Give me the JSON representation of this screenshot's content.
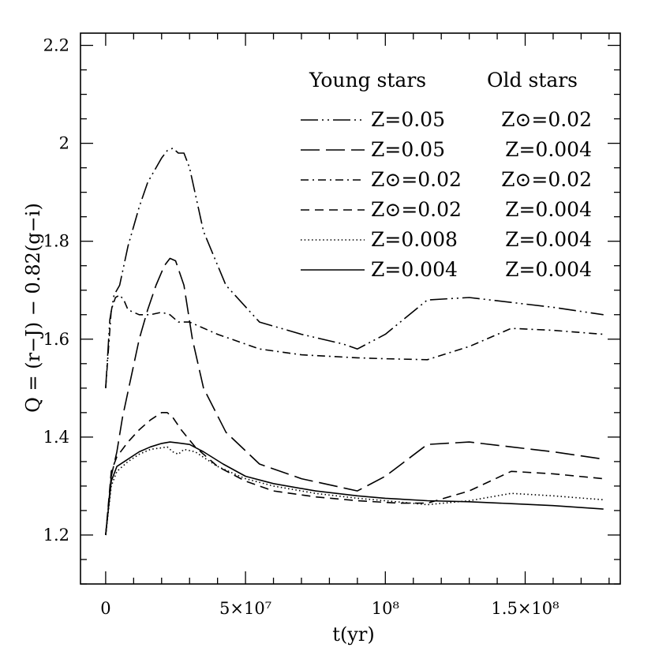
{
  "chart_data": {
    "type": "line",
    "title": "",
    "xlabel": "t(yr)",
    "ylabel": "Q = (r−J) − 0.82(g−i)",
    "xlim": [
      -9000000,
      184000000
    ],
    "ylim": [
      1.1,
      2.225
    ],
    "x_ticks": [
      {
        "value": 0,
        "label": "0"
      },
      {
        "value": 50000000,
        "label": "5×10⁷"
      },
      {
        "value": 100000000,
        "label": "10⁸"
      },
      {
        "value": 150000000,
        "label": "1.5×10⁸"
      }
    ],
    "y_ticks": [
      {
        "value": 1.2,
        "label": "1.2"
      },
      {
        "value": 1.4,
        "label": "1.4"
      },
      {
        "value": 1.6,
        "label": "1.6"
      },
      {
        "value": 1.8,
        "label": "1.8"
      },
      {
        "value": 2.0,
        "label": "2"
      },
      {
        "value": 2.2,
        "label": "2.2"
      }
    ],
    "legend": {
      "position": "top-right",
      "header_young": "Young stars",
      "header_old": "Old stars"
    },
    "series": [
      {
        "name": "Z=0.05 / Z⊙=0.02",
        "young": "Z=0.05",
        "old": "Z⊙=0.02",
        "dash": "long-dash-dot-dot",
        "x": [
          0,
          1500000,
          3000000,
          5000000,
          8000000,
          12000000,
          15000000,
          18000000,
          20000000,
          22000000,
          24000000,
          26000000,
          28000000,
          30000000,
          35000000,
          43000000,
          55000000,
          70000000,
          85000000,
          90000000,
          100000000,
          115000000,
          130000000,
          145000000,
          160000000,
          178000000
        ],
        "y": [
          1.5,
          1.64,
          1.69,
          1.71,
          1.79,
          1.87,
          1.92,
          1.95,
          1.97,
          1.985,
          1.99,
          1.98,
          1.98,
          1.95,
          1.82,
          1.71,
          1.635,
          1.61,
          1.59,
          1.58,
          1.61,
          1.68,
          1.685,
          1.675,
          1.665,
          1.65
        ]
      },
      {
        "name": "Z=0.05 / Z=0.004",
        "young": "Z=0.05",
        "old": "Z=0.004",
        "dash": "long-dash",
        "x": [
          0,
          2000000,
          4000000,
          6000000,
          9000000,
          12000000,
          15000000,
          18000000,
          21000000,
          23000000,
          25000000,
          28000000,
          31000000,
          35000000,
          43000000,
          55000000,
          70000000,
          90000000,
          100000000,
          115000000,
          130000000,
          145000000,
          160000000,
          178000000
        ],
        "y": [
          1.2,
          1.32,
          1.37,
          1.44,
          1.52,
          1.6,
          1.66,
          1.71,
          1.75,
          1.765,
          1.76,
          1.71,
          1.6,
          1.5,
          1.41,
          1.345,
          1.315,
          1.29,
          1.32,
          1.385,
          1.39,
          1.38,
          1.37,
          1.355
        ]
      },
      {
        "name": "Z⊙=0.02 / Z⊙=0.02",
        "young": "Z⊙=0.02",
        "old": "Z⊙=0.02",
        "dash": "dash-dot",
        "x": [
          0,
          2000000,
          3500000,
          5000000,
          6500000,
          8000000,
          12000000,
          16000000,
          20000000,
          23000000,
          26000000,
          30000000,
          40000000,
          55000000,
          70000000,
          90000000,
          100000000,
          115000000,
          130000000,
          145000000,
          160000000,
          178000000
        ],
        "y": [
          1.5,
          1.66,
          1.685,
          1.69,
          1.68,
          1.66,
          1.65,
          1.65,
          1.655,
          1.65,
          1.635,
          1.635,
          1.61,
          1.58,
          1.568,
          1.562,
          1.56,
          1.558,
          1.585,
          1.622,
          1.618,
          1.61
        ]
      },
      {
        "name": "Z⊙=0.02 / Z=0.004",
        "young": "Z⊙=0.02",
        "old": "Z=0.004",
        "dash": "short-dash",
        "x": [
          0,
          2000000,
          4000000,
          8000000,
          12000000,
          16000000,
          20000000,
          22000000,
          24000000,
          27000000,
          32000000,
          40000000,
          50000000,
          60000000,
          75000000,
          90000000,
          105000000,
          115000000,
          130000000,
          145000000,
          160000000,
          178000000
        ],
        "y": [
          1.2,
          1.33,
          1.36,
          1.39,
          1.415,
          1.435,
          1.45,
          1.45,
          1.44,
          1.415,
          1.38,
          1.34,
          1.31,
          1.29,
          1.278,
          1.27,
          1.265,
          1.265,
          1.29,
          1.33,
          1.325,
          1.315
        ]
      },
      {
        "name": "Z=0.008 / Z=0.004",
        "young": "Z=0.008",
        "old": "Z=0.004",
        "dash": "dotted",
        "x": [
          0,
          2000000,
          4000000,
          8000000,
          12000000,
          16000000,
          20000000,
          22000000,
          24000000,
          26000000,
          28000000,
          32000000,
          40000000,
          50000000,
          60000000,
          75000000,
          90000000,
          100000000,
          115000000,
          130000000,
          145000000,
          160000000,
          178000000
        ],
        "y": [
          1.2,
          1.3,
          1.33,
          1.35,
          1.365,
          1.375,
          1.378,
          1.38,
          1.37,
          1.365,
          1.375,
          1.37,
          1.34,
          1.315,
          1.3,
          1.285,
          1.275,
          1.27,
          1.262,
          1.27,
          1.285,
          1.28,
          1.272
        ]
      },
      {
        "name": "Z=0.004 / Z=0.004",
        "young": "Z=0.004",
        "old": "Z=0.004",
        "dash": "solid",
        "x": [
          0,
          2000000,
          4000000,
          8000000,
          12000000,
          16000000,
          20000000,
          23000000,
          26000000,
          30000000,
          35000000,
          42000000,
          50000000,
          60000000,
          75000000,
          90000000,
          100000000,
          115000000,
          130000000,
          145000000,
          160000000,
          178000000
        ],
        "y": [
          1.2,
          1.31,
          1.34,
          1.355,
          1.37,
          1.38,
          1.387,
          1.39,
          1.388,
          1.385,
          1.37,
          1.345,
          1.32,
          1.305,
          1.29,
          1.28,
          1.275,
          1.27,
          1.268,
          1.264,
          1.26,
          1.253
        ]
      }
    ]
  }
}
